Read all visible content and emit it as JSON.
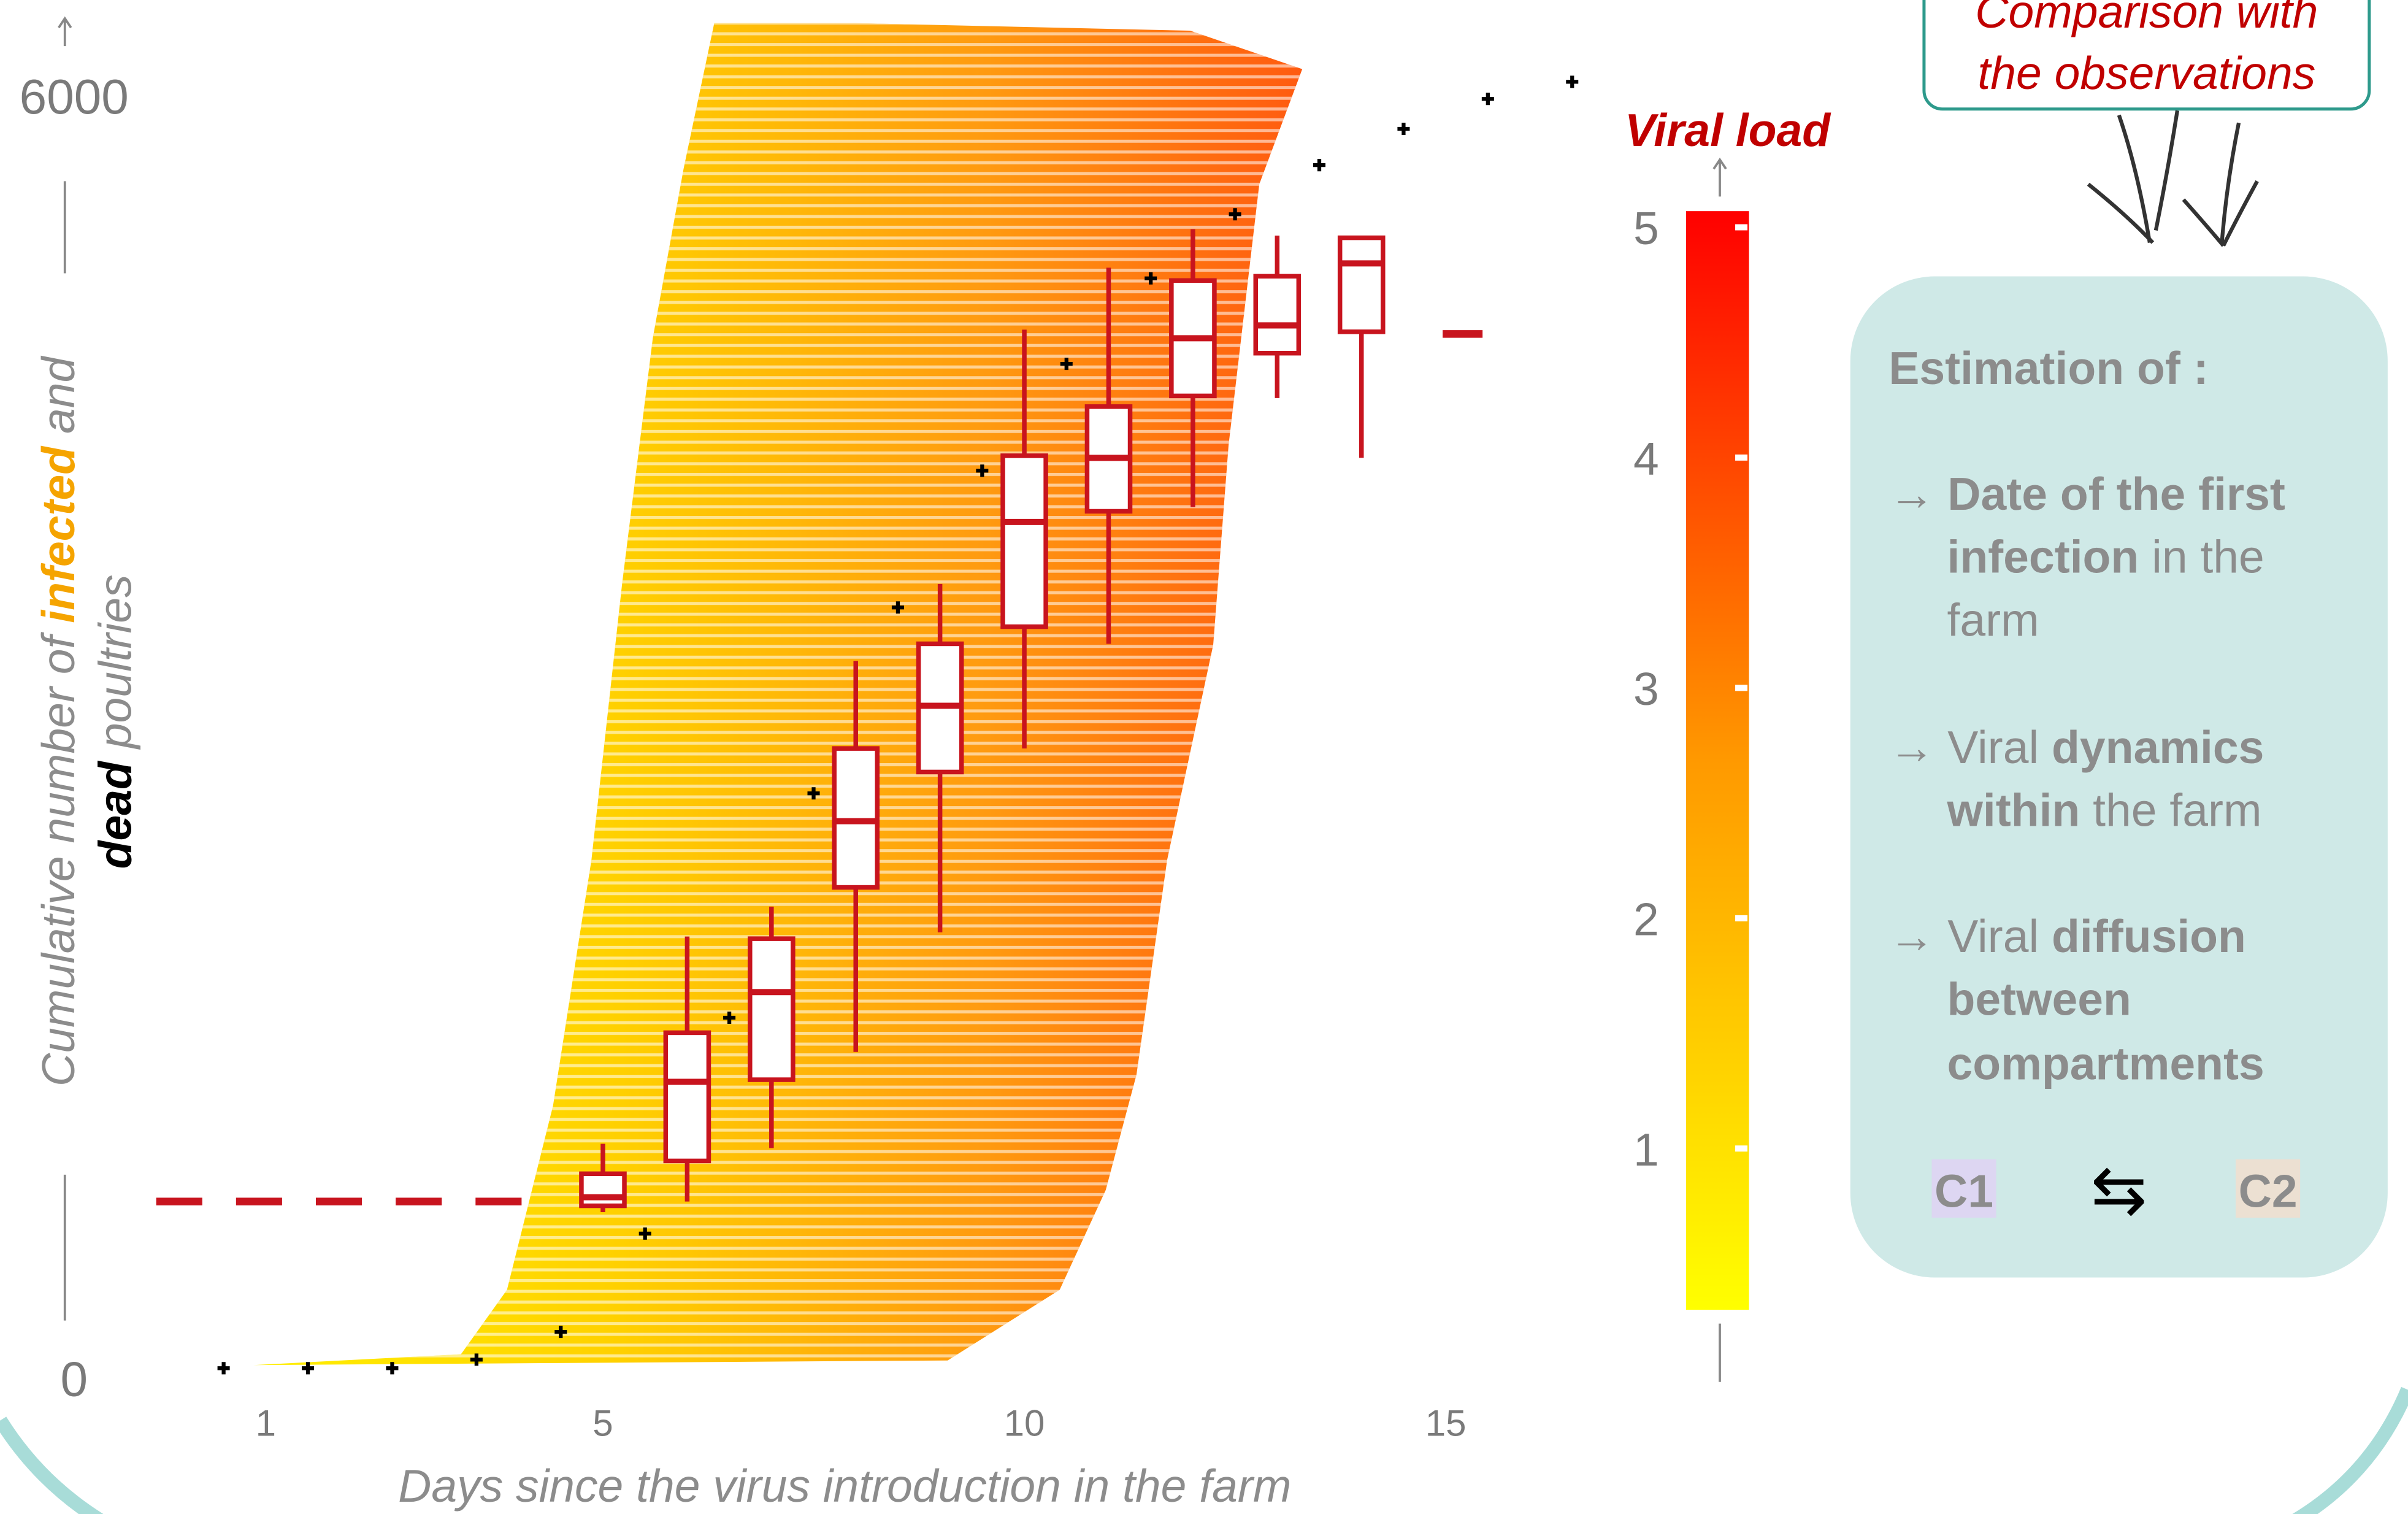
{
  "chart_data": {
    "type": "box",
    "x_label": "Days since the virus introduction in the farm",
    "y_label": [
      [
        {
          "text": "Cumulative number of ",
          "color": "#8c8c8c"
        },
        {
          "text": "infected",
          "color": "#f5a400",
          "bold": true
        },
        {
          "text": " and",
          "color": "#8c8c8c"
        }
      ],
      [
        {
          "text": "dead",
          "color": "#000000",
          "bold": true
        },
        {
          "text": " poultries",
          "color": "#8c8c8c"
        }
      ]
    ],
    "xlim": [
      -0.3,
      16.6
    ],
    "xticks": [
      1,
      5,
      10,
      15
    ],
    "ylim": [
      0,
      6350
    ],
    "yticks": [
      0,
      6000
    ],
    "boxes": {
      "x": [
        5,
        6,
        7,
        8,
        9,
        10,
        11,
        12,
        13,
        14
      ],
      "low": [
        780,
        830,
        1080,
        1530,
        2090,
        2950,
        3440,
        4080,
        4590,
        4310
      ],
      "q1": [
        810,
        1020,
        1400,
        2300,
        2840,
        3520,
        4060,
        4600,
        4800,
        4900
      ],
      "median": [
        850,
        1390,
        1810,
        2610,
        3150,
        4010,
        4310,
        4870,
        4930,
        5220
      ],
      "q3": [
        960,
        1620,
        2060,
        2950,
        3440,
        4320,
        4550,
        5140,
        5160,
        5340
      ],
      "high": [
        1100,
        2070,
        2210,
        3360,
        3720,
        4910,
        5200,
        5380,
        5350,
        5340
      ],
      "color": "#c8141e"
    },
    "observations": {
      "x": [
        0.5,
        1.5,
        2.5,
        3.5,
        4.5,
        5.5,
        6.5,
        7.5,
        8.5,
        9.5,
        10.5,
        11.5,
        12.5,
        13.5,
        14.5,
        15.5,
        16.5
      ],
      "values": [
        50,
        50,
        50,
        90,
        220,
        680,
        1690,
        2740,
        3610,
        4250,
        4750,
        5150,
        5450,
        5680,
        5850,
        5990,
        6070
      ],
      "color": "#000000"
    },
    "dashed_line": {
      "y": 830,
      "x": [
        -0.3,
        4.1
      ],
      "color": "#c8141e"
    },
    "end_marker": {
      "x": 15.2,
      "y": 4890,
      "color": "#c8141e"
    },
    "colorbar": {
      "title": "Viral load",
      "lim": [
        0.3,
        5.07
      ],
      "ticks": [
        1,
        2,
        3,
        4,
        5
      ],
      "colors": [
        "#ffff00",
        "#ff9900",
        "#ff0000"
      ]
    }
  },
  "callout": {
    "lines": [
      "Comparison with",
      "the observations"
    ]
  },
  "panel": {
    "title": "Estimation of :",
    "items": [
      [
        [
          {
            "text": "→ "
          },
          {
            "text": "Date of the first",
            "bold": true
          }
        ],
        [
          {
            "text": "infection",
            "bold": true
          },
          {
            "text": " in the"
          }
        ],
        [
          {
            "text": "farm"
          }
        ]
      ],
      [
        [
          {
            "text": "→ Viral "
          },
          {
            "text": "dynamics",
            "bold": true
          }
        ],
        [
          {
            "text": "within",
            "bold": true
          },
          {
            "text": " the farm"
          }
        ]
      ],
      [
        [
          {
            "text": "→ Viral "
          },
          {
            "text": "diffusion",
            "bold": true
          }
        ],
        [
          {
            "text": "between",
            "bold": true
          }
        ],
        [
          {
            "text": "compartments",
            "bold": true
          }
        ]
      ]
    ],
    "c1": "C1",
    "arrows": "⇆",
    "c2": "C2"
  }
}
